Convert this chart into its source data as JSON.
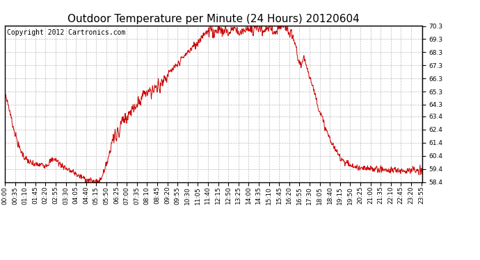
{
  "title": "Outdoor Temperature per Minute (24 Hours) 20120604",
  "copyright_text": "Copyright 2012 Cartronics.com",
  "line_color": "#cc0000",
  "background_color": "#ffffff",
  "grid_color": "#bbbbbb",
  "ylim": [
    58.4,
    70.3
  ],
  "yticks": [
    58.4,
    59.4,
    60.4,
    61.4,
    62.4,
    63.4,
    64.3,
    65.3,
    66.3,
    67.3,
    68.3,
    69.3,
    70.3
  ],
  "xtick_labels": [
    "00:00",
    "00:35",
    "01:10",
    "01:45",
    "02:20",
    "02:55",
    "03:30",
    "04:05",
    "04:40",
    "05:15",
    "05:50",
    "06:25",
    "07:00",
    "07:35",
    "08:10",
    "08:45",
    "09:20",
    "09:55",
    "10:30",
    "11:05",
    "11:40",
    "12:15",
    "12:50",
    "13:25",
    "14:00",
    "14:35",
    "15:10",
    "15:45",
    "16:20",
    "16:55",
    "17:30",
    "18:05",
    "18:40",
    "19:15",
    "19:50",
    "20:25",
    "21:00",
    "21:35",
    "22:10",
    "22:45",
    "23:20",
    "23:55"
  ],
  "title_fontsize": 11,
  "tick_fontsize": 6.5,
  "copyright_fontsize": 7
}
